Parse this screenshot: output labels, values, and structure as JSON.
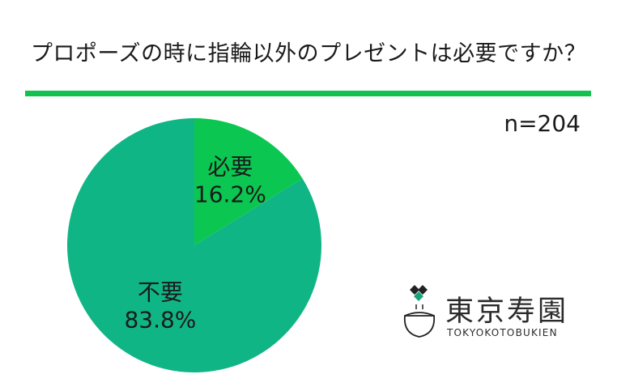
{
  "title": "プロポーズの時に指輪以外のプレゼントは必要ですか？",
  "sample_size": "n=204",
  "colors": {
    "accent_rule": "#12c24f",
    "slice_need": "#0bc751",
    "slice_no_need": "#10b585"
  },
  "chart_data": {
    "type": "pie",
    "title": "プロポーズの時に指輪以外のプレゼントは必要ですか？",
    "slices": [
      {
        "label": "必要",
        "value": 16.2,
        "display": "16.2%"
      },
      {
        "label": "不要",
        "value": 83.8,
        "display": "83.8%"
      }
    ]
  },
  "logo": {
    "name": "東京寿園",
    "romaji": "TOKYOKOTOBUKIEN"
  }
}
